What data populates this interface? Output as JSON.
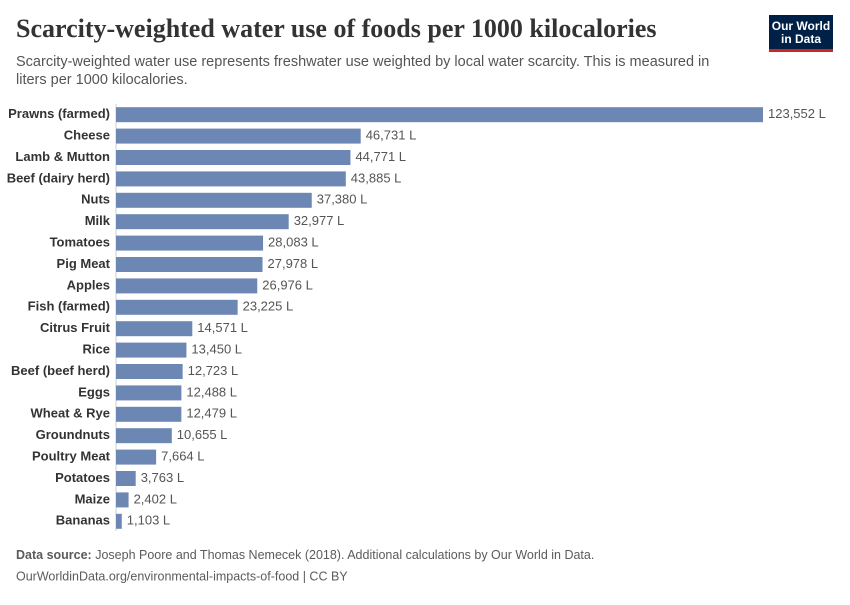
{
  "chart_data": {
    "type": "bar",
    "orientation": "horizontal",
    "title": "Scarcity-weighted water use of foods per 1000 kilocalories",
    "subtitle_lines": [
      "Scarcity-weighted water use represents freshwater use weighted by local water scarcity. This is measured in",
      "liters per 1000 kilocalories."
    ],
    "categories": [
      "Prawns (farmed)",
      "Cheese",
      "Lamb & Mutton",
      "Beef (dairy herd)",
      "Nuts",
      "Milk",
      "Tomatoes",
      "Pig Meat",
      "Apples",
      "Fish (farmed)",
      "Citrus Fruit",
      "Rice",
      "Beef (beef herd)",
      "Eggs",
      "Wheat & Rye",
      "Groundnuts",
      "Poultry Meat",
      "Potatoes",
      "Maize",
      "Bananas"
    ],
    "values": [
      123552,
      46731,
      44771,
      43885,
      37380,
      32977,
      28083,
      27978,
      26976,
      23225,
      14571,
      13450,
      12723,
      12488,
      12479,
      10655,
      7664,
      3763,
      2402,
      1103
    ],
    "value_labels": [
      "123,552 L",
      "46,731 L",
      "44,771 L",
      "43,885 L",
      "37,380 L",
      "32,977 L",
      "28,083 L",
      "27,978 L",
      "26,976 L",
      "23,225 L",
      "14,571 L",
      "13,450 L",
      "12,723 L",
      "12,488 L",
      "12,479 L",
      "10,655 L",
      "7,664 L",
      "3,763 L",
      "2,402 L",
      "1,103 L"
    ],
    "color": "#6d87b4",
    "source_label": "Data source:",
    "source": "Joseph Poore and Thomas Nemecek (2018). Additional calculations by Our World in Data.",
    "url": "OurWorldinData.org/environmental-impacts-of-food | CC BY",
    "logo_lines": [
      "Our World",
      "in Data"
    ]
  }
}
